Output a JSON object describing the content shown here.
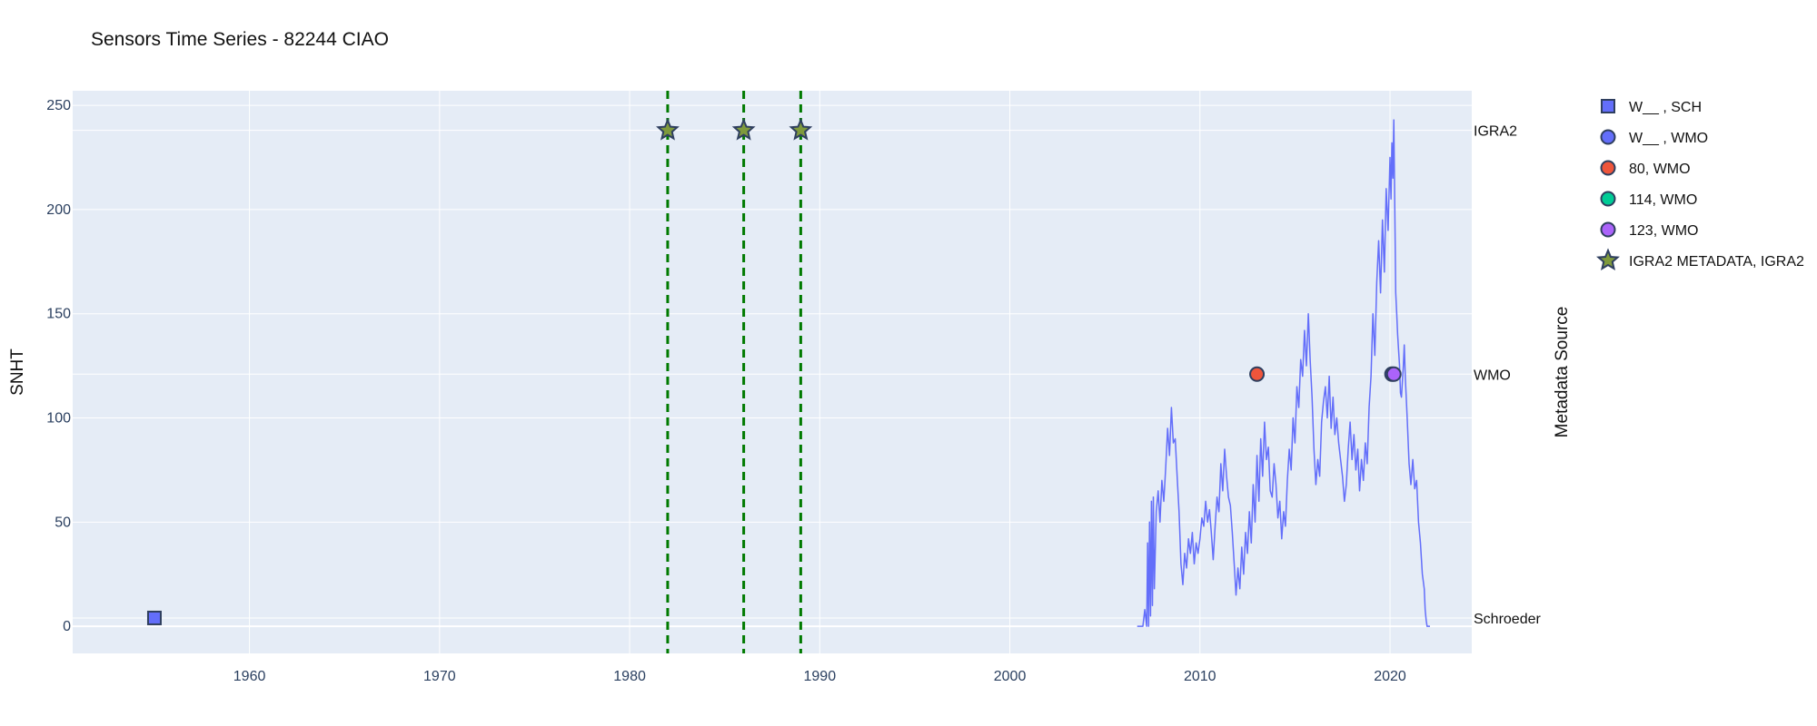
{
  "chart_data": {
    "type": "line",
    "title": "Sensors Time Series - 82244 CIAO",
    "xlabel": "",
    "ylabel": "SNHT",
    "y2label": "Metadata Source",
    "xlim": [
      1950.7,
      2024.3
    ],
    "ylim": [
      -13,
      257
    ],
    "x_ticks": [
      1960,
      1970,
      1980,
      1990,
      2000,
      2010,
      2020
    ],
    "y_ticks": [
      0,
      50,
      100,
      150,
      200,
      250
    ],
    "grid": true,
    "y2_categories": [
      {
        "label": "IGRA2",
        "y": 238
      },
      {
        "label": "WMO",
        "y": 121
      },
      {
        "label": "Schroeder",
        "y": 4
      }
    ],
    "snht_series": {
      "name": "SNHT",
      "color": "#636efa",
      "points": [
        [
          2006.7,
          0
        ],
        [
          2007.0,
          0
        ],
        [
          2007.1,
          8
        ],
        [
          2007.2,
          0
        ],
        [
          2007.25,
          40
        ],
        [
          2007.3,
          0
        ],
        [
          2007.35,
          50
        ],
        [
          2007.4,
          5
        ],
        [
          2007.45,
          60
        ],
        [
          2007.5,
          10
        ],
        [
          2007.55,
          62
        ],
        [
          2007.6,
          18
        ],
        [
          2007.7,
          55
        ],
        [
          2007.8,
          65
        ],
        [
          2007.9,
          50
        ],
        [
          2008.0,
          70
        ],
        [
          2008.1,
          60
        ],
        [
          2008.2,
          76
        ],
        [
          2008.3,
          95
        ],
        [
          2008.4,
          82
        ],
        [
          2008.5,
          105
        ],
        [
          2008.6,
          88
        ],
        [
          2008.7,
          90
        ],
        [
          2008.8,
          72
        ],
        [
          2008.9,
          55
        ],
        [
          2009.0,
          30
        ],
        [
          2009.1,
          20
        ],
        [
          2009.2,
          35
        ],
        [
          2009.3,
          28
        ],
        [
          2009.4,
          42
        ],
        [
          2009.5,
          35
        ],
        [
          2009.6,
          45
        ],
        [
          2009.7,
          30
        ],
        [
          2009.8,
          40
        ],
        [
          2009.9,
          35
        ],
        [
          2010.0,
          42
        ],
        [
          2010.1,
          52
        ],
        [
          2010.2,
          48
        ],
        [
          2010.3,
          60
        ],
        [
          2010.4,
          50
        ],
        [
          2010.5,
          56
        ],
        [
          2010.6,
          45
        ],
        [
          2010.7,
          32
        ],
        [
          2010.8,
          48
        ],
        [
          2010.9,
          62
        ],
        [
          2011.0,
          55
        ],
        [
          2011.1,
          78
        ],
        [
          2011.2,
          65
        ],
        [
          2011.3,
          85
        ],
        [
          2011.4,
          72
        ],
        [
          2011.5,
          62
        ],
        [
          2011.6,
          58
        ],
        [
          2011.7,
          45
        ],
        [
          2011.8,
          30
        ],
        [
          2011.9,
          15
        ],
        [
          2012.0,
          28
        ],
        [
          2012.1,
          18
        ],
        [
          2012.2,
          38
        ],
        [
          2012.3,
          25
        ],
        [
          2012.4,
          45
        ],
        [
          2012.5,
          35
        ],
        [
          2012.6,
          55
        ],
        [
          2012.7,
          40
        ],
        [
          2012.8,
          68
        ],
        [
          2012.9,
          50
        ],
        [
          2013.0,
          82
        ],
        [
          2013.1,
          60
        ],
        [
          2013.2,
          90
        ],
        [
          2013.3,
          72
        ],
        [
          2013.4,
          98
        ],
        [
          2013.5,
          80
        ],
        [
          2013.6,
          86
        ],
        [
          2013.7,
          65
        ],
        [
          2013.8,
          62
        ],
        [
          2013.9,
          78
        ],
        [
          2014.0,
          68
        ],
        [
          2014.1,
          52
        ],
        [
          2014.2,
          60
        ],
        [
          2014.3,
          42
        ],
        [
          2014.4,
          55
        ],
        [
          2014.5,
          48
        ],
        [
          2014.6,
          70
        ],
        [
          2014.7,
          85
        ],
        [
          2014.8,
          75
        ],
        [
          2014.9,
          100
        ],
        [
          2015.0,
          88
        ],
        [
          2015.1,
          115
        ],
        [
          2015.2,
          105
        ],
        [
          2015.3,
          128
        ],
        [
          2015.4,
          120
        ],
        [
          2015.5,
          142
        ],
        [
          2015.6,
          125
        ],
        [
          2015.7,
          150
        ],
        [
          2015.8,
          128
        ],
        [
          2015.9,
          110
        ],
        [
          2016.0,
          85
        ],
        [
          2016.1,
          68
        ],
        [
          2016.2,
          80
        ],
        [
          2016.3,
          72
        ],
        [
          2016.4,
          98
        ],
        [
          2016.5,
          108
        ],
        [
          2016.6,
          115
        ],
        [
          2016.7,
          100
        ],
        [
          2016.8,
          120
        ],
        [
          2016.9,
          95
        ],
        [
          2017.0,
          110
        ],
        [
          2017.1,
          92
        ],
        [
          2017.2,
          100
        ],
        [
          2017.3,
          88
        ],
        [
          2017.4,
          80
        ],
        [
          2017.5,
          72
        ],
        [
          2017.6,
          60
        ],
        [
          2017.7,
          68
        ],
        [
          2017.8,
          85
        ],
        [
          2017.9,
          98
        ],
        [
          2018.0,
          80
        ],
        [
          2018.1,
          92
        ],
        [
          2018.2,
          75
        ],
        [
          2018.3,
          85
        ],
        [
          2018.4,
          65
        ],
        [
          2018.5,
          80
        ],
        [
          2018.6,
          70
        ],
        [
          2018.7,
          88
        ],
        [
          2018.8,
          78
        ],
        [
          2018.9,
          105
        ],
        [
          2019.0,
          120
        ],
        [
          2019.1,
          150
        ],
        [
          2019.2,
          130
        ],
        [
          2019.3,
          165
        ],
        [
          2019.4,
          185
        ],
        [
          2019.5,
          160
        ],
        [
          2019.6,
          195
        ],
        [
          2019.7,
          170
        ],
        [
          2019.8,
          210
        ],
        [
          2019.9,
          190
        ],
        [
          2020.0,
          225
        ],
        [
          2020.05,
          205
        ],
        [
          2020.1,
          232
        ],
        [
          2020.15,
          215
        ],
        [
          2020.2,
          243
        ],
        [
          2020.25,
          200
        ],
        [
          2020.3,
          160
        ],
        [
          2020.35,
          150
        ],
        [
          2020.4,
          140
        ],
        [
          2020.5,
          125
        ],
        [
          2020.55,
          112
        ],
        [
          2020.6,
          110
        ],
        [
          2020.7,
          125
        ],
        [
          2020.75,
          135
        ],
        [
          2020.8,
          120
        ],
        [
          2020.9,
          100
        ],
        [
          2021.0,
          78
        ],
        [
          2021.1,
          68
        ],
        [
          2021.2,
          80
        ],
        [
          2021.3,
          66
        ],
        [
          2021.4,
          70
        ],
        [
          2021.5,
          50
        ],
        [
          2021.6,
          40
        ],
        [
          2021.7,
          25
        ],
        [
          2021.8,
          18
        ],
        [
          2021.85,
          8
        ],
        [
          2021.9,
          3
        ],
        [
          2021.95,
          0
        ],
        [
          2022.1,
          0
        ]
      ]
    },
    "event_lines": {
      "color": "#007a00",
      "x": [
        1982.0,
        1986.0,
        1989.0
      ]
    },
    "markers": [
      {
        "legend": "W__ , SCH",
        "shape": "square",
        "color": "#636efa",
        "points": [
          [
            1955.0,
            4
          ]
        ]
      },
      {
        "legend": "W__ , WMO",
        "shape": "circle",
        "color": "#636efa",
        "points": [
          [
            2020.1,
            121
          ]
        ]
      },
      {
        "legend": "80, WMO",
        "shape": "circle",
        "color": "#ef553b",
        "points": [
          [
            2013.0,
            121
          ]
        ]
      },
      {
        "legend": "114, WMO",
        "shape": "circle",
        "color": "#00cc96",
        "points": []
      },
      {
        "legend": "123, WMO",
        "shape": "circle",
        "color": "#ab63fa",
        "points": [
          [
            2020.2,
            121
          ]
        ]
      },
      {
        "legend": "IGRA2 METADATA, IGRA2",
        "shape": "star",
        "color": "#7f9a3c",
        "points": [
          [
            1982.0,
            238
          ],
          [
            1986.0,
            238
          ],
          [
            1989.0,
            238
          ]
        ]
      }
    ]
  },
  "colors": {
    "plot_bg": "#e5ecf6",
    "grid": "#ffffff",
    "marker_outline": "#2f3f5f"
  }
}
